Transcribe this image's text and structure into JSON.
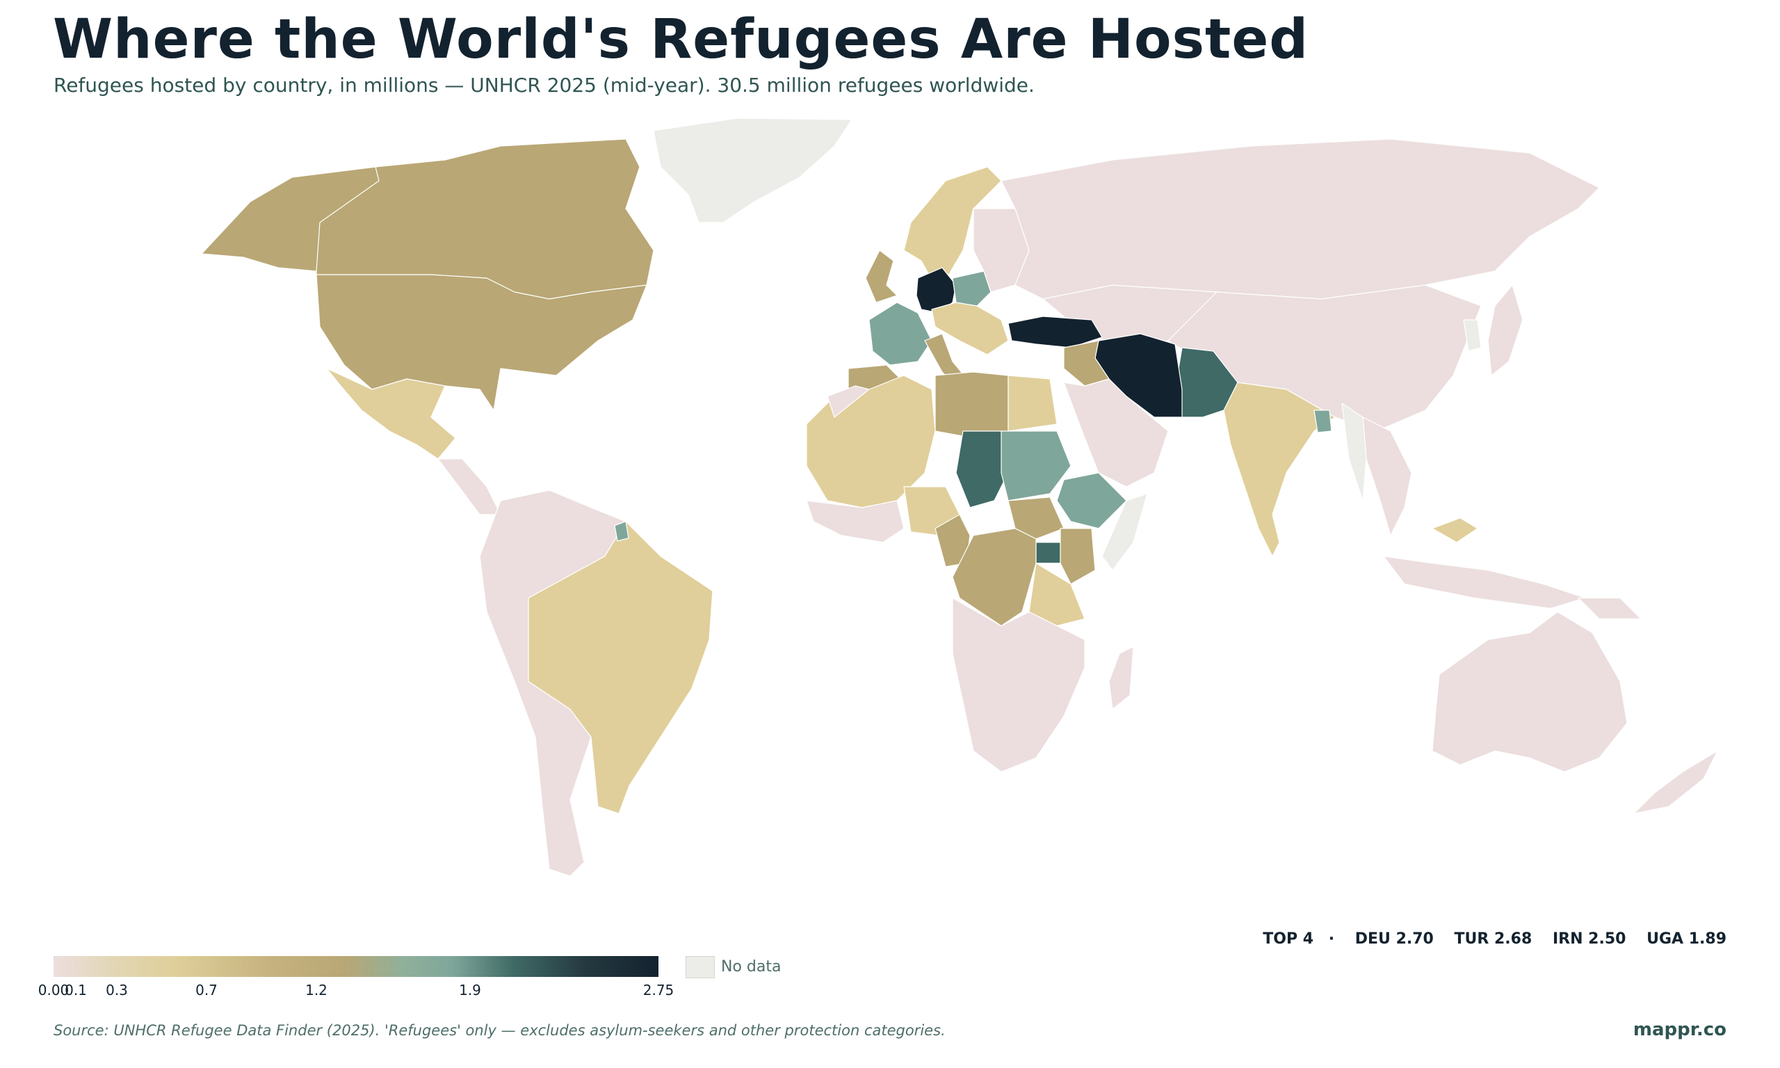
{
  "title": "Where the World's Refugees Are Hosted",
  "subtitle": "Refugees hosted by country, in millions — UNHCR 2025 (mid-year). 30.5 million refugees worldwide.",
  "top_list": {
    "label": "TOP 4",
    "separator": "·",
    "items": [
      "DEU 2.70",
      "TUR 2.68",
      "IRN 2.50",
      "UGA 1.89"
    ]
  },
  "legend": {
    "ticks": [
      "0.00",
      "0.1",
      "0.3",
      "0.7",
      "1.2",
      "1.9",
      "2.75"
    ],
    "tick_values": [
      0.0,
      0.1,
      0.3,
      0.7,
      1.2,
      1.9,
      2.75
    ],
    "range": [
      0.0,
      2.75
    ],
    "no_data_label": "No data",
    "colors": {
      "low": "#ecdede",
      "light_tan": "#e0cf9a",
      "tan": "#b9a775",
      "sage": "#7fa69a",
      "teal": "#3f6a66",
      "navy": "#13222f",
      "no_data": "#ecece8"
    }
  },
  "chart_data": {
    "type": "choropleth",
    "unit": "millions of refugees hosted",
    "values": {
      "DEU": 2.7,
      "TUR": 2.68,
      "IRN": 2.5,
      "UGA": 1.89,
      "PAK": 1.7,
      "TCD": 1.6,
      "POL": 1.0,
      "FRA": 1.0,
      "SDN": 1.0,
      "ETH": 1.0,
      "BGD": 1.0,
      "USA": 0.5,
      "CAN": 0.5,
      "GBR": 0.5,
      "ESP": 0.5,
      "ITA": 0.5,
      "EGY": 0.5,
      "LBY": 0.5,
      "COD": 0.5,
      "CMR": 0.5,
      "SSD": 0.5,
      "KEN": 0.5,
      "IRQ": 0.5,
      "JOR": 0.5,
      "MEX": 0.3,
      "BRA": 0.3,
      "IND": 0.3,
      "DZA": 0.3,
      "MLI": 0.3,
      "NER": 0.3,
      "NGA": 0.3,
      "TZA": 0.3,
      "SWE": 0.3,
      "NOR": 0.3,
      "CZE": 0.3,
      "ROU": 0.3,
      "AUT": 0.3,
      "MYS": 0.3,
      "CHN": 0.05,
      "RUS": 0.05,
      "AUS": 0.05,
      "SAU": 0.05,
      "ARG": 0.05,
      "ZAF": 0.05
    },
    "no_data": [
      "GRL",
      "MMR",
      "KOR",
      "SOM",
      "CUB"
    ]
  },
  "source": "Source: UNHCR Refugee Data Finder (2025). 'Refugees' only — excludes asylum-seekers and other protection categories.",
  "brand": "mappr.co"
}
